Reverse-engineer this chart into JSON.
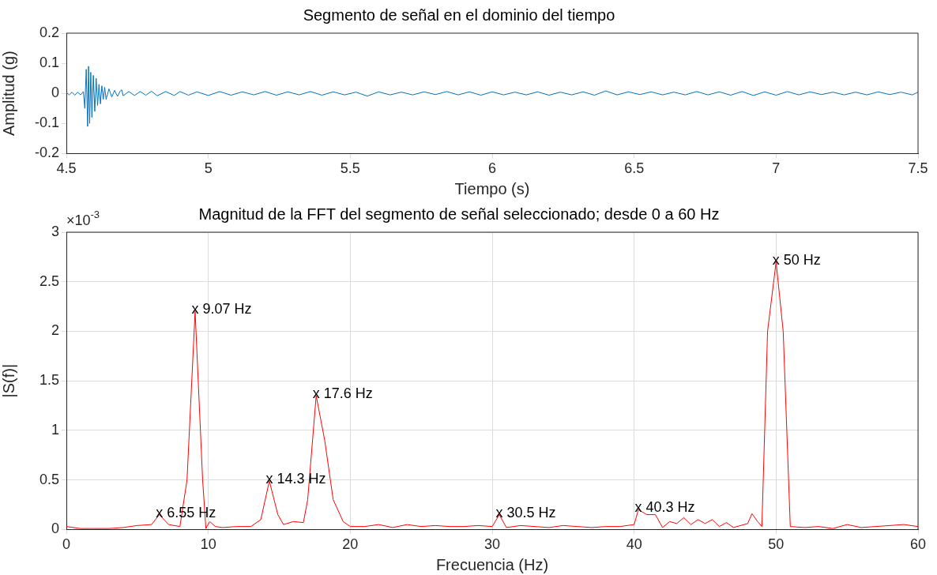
{
  "chart_data": [
    {
      "type": "line",
      "title": "Segmento de señal en el dominio del tiempo",
      "xlabel": "Tiempo (s)",
      "ylabel": "Amplitud (g)",
      "xlim": [
        4.5,
        7.5
      ],
      "xticks": [
        4.5,
        5,
        5.5,
        6,
        6.5,
        7,
        7.5
      ],
      "ylim": [
        -0.2,
        0.2
      ],
      "yticks": [
        -0.2,
        -0.1,
        0,
        0.1,
        0.2
      ],
      "grid": false,
      "legend": false,
      "marker": "none",
      "series": [
        {
          "color": "#0072bd",
          "x": [
            4.5,
            4.51,
            4.52,
            4.53,
            4.54,
            4.55,
            4.56,
            4.565,
            4.57,
            4.575,
            4.578,
            4.582,
            4.586,
            4.59,
            4.595,
            4.6,
            4.605,
            4.61,
            4.615,
            4.62,
            4.625,
            4.63,
            4.635,
            4.64,
            4.65,
            4.66,
            4.67,
            4.68,
            4.69,
            4.695,
            4.7,
            4.72,
            4.74,
            4.76,
            4.78,
            4.8,
            4.82,
            4.85,
            4.88,
            4.9,
            4.93,
            4.96,
            5,
            5.04,
            5.08,
            5.12,
            5.16,
            5.2,
            5.24,
            5.28,
            5.32,
            5.36,
            5.4,
            5.44,
            5.48,
            5.52,
            5.56,
            5.6,
            5.64,
            5.68,
            5.72,
            5.76,
            5.8,
            5.84,
            5.88,
            5.92,
            5.96,
            6,
            6.04,
            6.08,
            6.12,
            6.16,
            6.2,
            6.24,
            6.28,
            6.32,
            6.36,
            6.4,
            6.44,
            6.48,
            6.52,
            6.56,
            6.6,
            6.64,
            6.68,
            6.72,
            6.76,
            6.8,
            6.84,
            6.88,
            6.92,
            6.96,
            7,
            7.04,
            7.08,
            7.12,
            7.16,
            7.2,
            7.24,
            7.28,
            7.32,
            7.36,
            7.4,
            7.44,
            7.48,
            7.5
          ],
          "values": [
            0.003,
            -0.005,
            0.004,
            -0.006,
            0.004,
            -0.005,
            0.006,
            -0.05,
            0.08,
            -0.11,
            0.09,
            -0.1,
            0.07,
            -0.08,
            0.06,
            -0.06,
            0.05,
            -0.04,
            0.03,
            -0.035,
            0.025,
            -0.02,
            0.02,
            -0.02,
            0.015,
            -0.012,
            0.01,
            -0.01,
            0.008,
            0.012,
            -0.008,
            0.006,
            -0.007,
            0.006,
            -0.006,
            0.007,
            -0.008,
            0.006,
            -0.007,
            0.006,
            -0.006,
            0.005,
            -0.007,
            0.006,
            -0.006,
            0.005,
            -0.005,
            0.006,
            -0.006,
            0.005,
            -0.005,
            0.006,
            -0.006,
            0.005,
            -0.005,
            0.004,
            -0.009,
            0.005,
            -0.005,
            0.004,
            -0.005,
            0.005,
            -0.004,
            0.006,
            -0.005,
            0.005,
            -0.006,
            0.005,
            -0.005,
            0.004,
            -0.005,
            0.005,
            -0.006,
            0.004,
            -0.005,
            0.005,
            -0.006,
            0.008,
            -0.005,
            0.005,
            -0.004,
            0.005,
            -0.005,
            0.004,
            -0.005,
            0.006,
            -0.005,
            0.005,
            -0.006,
            0.006,
            -0.007,
            0.005,
            -0.006,
            0.006,
            -0.005,
            0.005,
            -0.004,
            0.004,
            -0.005,
            0.004,
            -0.005,
            0.005,
            -0.004,
            0.004,
            -0.005,
            0.004
          ]
        }
      ]
    },
    {
      "type": "line",
      "title": "Magnitud de la FFT del segmento de señal seleccionado; desde 0 a 60 Hz",
      "xlabel": "Frecuencia (Hz)",
      "ylabel": "|S(f)|",
      "xlim": [
        0,
        60
      ],
      "xticks": [
        0,
        10,
        20,
        30,
        40,
        50,
        60
      ],
      "ylim": [
        0,
        3
      ],
      "yticks": [
        0,
        0.5,
        1,
        1.5,
        2,
        2.5,
        3
      ],
      "grid": true,
      "legend": false,
      "marker": "none",
      "annotations": [
        "×10$^{-3}$",
        {
          "text": "x 6.55 Hz",
          "x": 6.55,
          "y": 0.15
        },
        {
          "text": "x 9.07 Hz",
          "x": 9.07,
          "y": 2.2
        },
        {
          "text": "x 14.3 Hz",
          "x": 14.3,
          "y": 0.49
        },
        {
          "text": "x 17.6 Hz",
          "x": 17.6,
          "y": 1.35
        },
        {
          "text": "x 30.5 Hz",
          "x": 30.5,
          "y": 0.15
        },
        {
          "text": "x 40.3 Hz",
          "x": 40.3,
          "y": 0.2
        },
        {
          "text": "x 50 Hz",
          "x": 50,
          "y": 2.7
        }
      ],
      "series": [
        {
          "color": "#ff0000",
          "x": [
            0,
            1,
            2,
            3,
            4,
            5,
            6,
            6.55,
            7.2,
            8,
            8.5,
            9.07,
            9.6,
            9.83,
            10.1,
            10.5,
            11,
            12,
            13,
            13.7,
            14.3,
            14.9,
            15.3,
            16,
            16.7,
            17,
            17.6,
            18.2,
            18.8,
            19.5,
            20,
            21,
            22,
            23,
            24,
            25,
            26,
            27,
            28,
            29,
            30,
            30.5,
            31,
            32,
            33,
            34,
            35,
            36,
            37,
            38,
            39,
            40,
            40.3,
            40.9,
            41.5,
            42,
            42.5,
            43,
            43.5,
            44,
            44.5,
            45,
            45.5,
            46,
            46.5,
            47,
            48,
            48.3,
            48.7,
            49,
            49.4,
            50,
            50.5,
            51,
            52,
            53,
            54,
            55,
            56,
            57,
            58,
            59,
            60
          ],
          "values": [
            0.03,
            0.01,
            0.01,
            0.01,
            0.02,
            0.04,
            0.05,
            0.15,
            0.05,
            0.03,
            0.5,
            2.2,
            0.5,
            0.01,
            0.08,
            0.03,
            0.02,
            0.03,
            0.03,
            0.1,
            0.49,
            0.15,
            0.05,
            0.08,
            0.07,
            0.3,
            1.35,
            0.9,
            0.3,
            0.08,
            0.03,
            0.03,
            0.05,
            0.02,
            0.05,
            0.03,
            0.04,
            0.03,
            0.03,
            0.04,
            0.03,
            0.15,
            0.02,
            0.04,
            0.03,
            0.02,
            0.04,
            0.03,
            0.02,
            0.03,
            0.03,
            0.05,
            0.2,
            0.15,
            0.15,
            0.02,
            0.08,
            0.06,
            0.12,
            0.05,
            0.1,
            0.06,
            0.1,
            0.03,
            0.07,
            0.02,
            0.06,
            0.16,
            0.08,
            0.03,
            2.0,
            2.7,
            2.0,
            0.03,
            0.02,
            0.03,
            0.01,
            0.05,
            0.02,
            0.03,
            0.04,
            0.05,
            0.03
          ]
        }
      ]
    }
  ]
}
